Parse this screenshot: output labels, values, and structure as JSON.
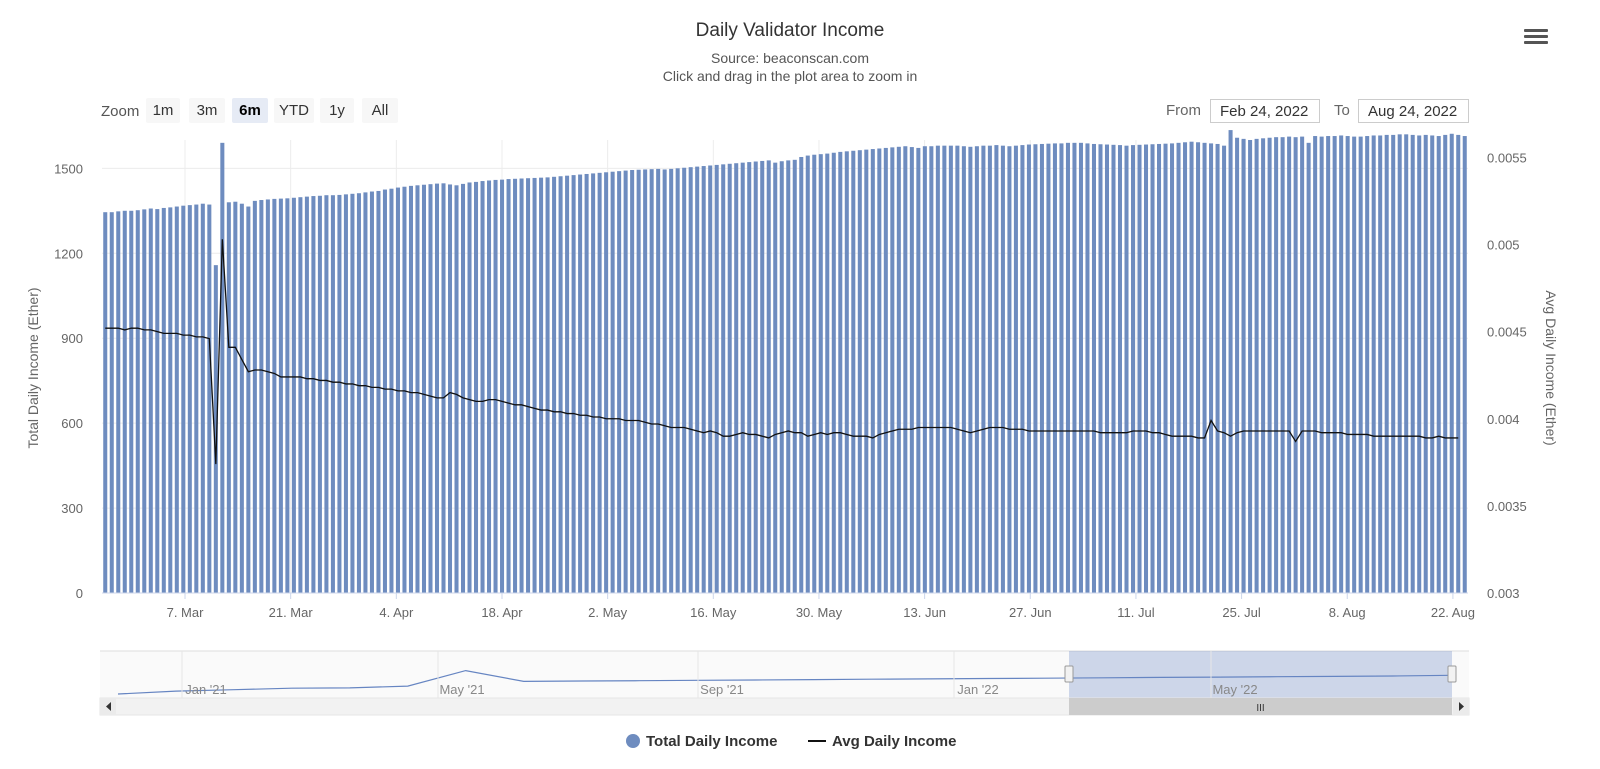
{
  "chart_data": {
    "type": "bar",
    "title": "Daily Validator Income",
    "subtitle": "Source: beaconscan.com",
    "subtitle2": "Click and drag in the plot area to zoom in",
    "ylabel_left": "Total Daily Income (Ether)",
    "ylabel_right": "Avg Daily Income (Ether)",
    "ylim_left": [
      0,
      1600
    ],
    "ylim_right": [
      0.003,
      0.0056
    ],
    "yticks_left": [
      "0",
      "300",
      "600",
      "900",
      "1200",
      "1500"
    ],
    "yticks_right": [
      "0.003",
      "0.0035",
      "0.004",
      "0.0045",
      "0.005",
      "0.0055"
    ],
    "xticks": [
      "7. Mar",
      "21. Mar",
      "4. Apr",
      "18. Apr",
      "2. May",
      "16. May",
      "30. May",
      "13. Jun",
      "27. Jun",
      "11. Jul",
      "25. Jul",
      "8. Aug",
      "22. Aug"
    ],
    "x_start": "2022-02-24",
    "x_end": "2022-08-24",
    "series": [
      {
        "name": "Total Daily Income",
        "kind": "column",
        "color": "#6e8cbf",
        "values": [
          1345,
          1345,
          1348,
          1350,
          1350,
          1352,
          1355,
          1358,
          1356,
          1360,
          1362,
          1365,
          1368,
          1370,
          1372,
          1375,
          1372,
          1158,
          1590,
          1380,
          1382,
          1375,
          1365,
          1385,
          1388,
          1390,
          1392,
          1393,
          1394,
          1396,
          1398,
          1400,
          1402,
          1403,
          1405,
          1405,
          1406,
          1408,
          1410,
          1412,
          1415,
          1418,
          1420,
          1425,
          1428,
          1432,
          1435,
          1438,
          1440,
          1442,
          1444,
          1446,
          1447,
          1443,
          1440,
          1445,
          1450,
          1452,
          1455,
          1457,
          1459,
          1460,
          1462,
          1463,
          1464,
          1465,
          1466,
          1467,
          1468,
          1470,
          1472,
          1474,
          1476,
          1478,
          1480,
          1482,
          1484,
          1486,
          1488,
          1490,
          1492,
          1494,
          1495,
          1496,
          1497,
          1498,
          1496,
          1498,
          1500,
          1502,
          1504,
          1506,
          1508,
          1510,
          1512,
          1514,
          1516,
          1518,
          1520,
          1522,
          1524,
          1526,
          1528,
          1520,
          1525,
          1528,
          1530,
          1540,
          1545,
          1548,
          1550,
          1552,
          1555,
          1558,
          1560,
          1562,
          1564,
          1566,
          1568,
          1570,
          1572,
          1574,
          1576,
          1578,
          1575,
          1572,
          1578,
          1578,
          1580,
          1580,
          1580,
          1580,
          1578,
          1576,
          1578,
          1580,
          1580,
          1582,
          1580,
          1578,
          1580,
          1582,
          1584,
          1585,
          1586,
          1587,
          1588,
          1588,
          1590,
          1590,
          1590,
          1588,
          1586,
          1585,
          1584,
          1583,
          1582,
          1580,
          1582,
          1583,
          1584,
          1585,
          1586,
          1587,
          1588,
          1590,
          1592,
          1594,
          1592,
          1590,
          1588,
          1586,
          1580,
          1635,
          1608,
          1604,
          1600,
          1604,
          1606,
          1608,
          1610,
          1610,
          1612,
          1610,
          1612,
          1590,
          1614,
          1612,
          1614,
          1614,
          1616,
          1614,
          1612,
          1612,
          1614,
          1616,
          1616,
          1618,
          1618,
          1620,
          1620,
          1618,
          1616,
          1618,
          1616,
          1614,
          1618,
          1622,
          1618,
          1614
        ]
      },
      {
        "name": "Avg Daily Income",
        "kind": "line",
        "color": "#111111",
        "values": [
          0.00452,
          0.00452,
          0.00452,
          0.00451,
          0.00452,
          0.00452,
          0.00451,
          0.00451,
          0.0045,
          0.00449,
          0.00449,
          0.00449,
          0.00448,
          0.00448,
          0.00447,
          0.00447,
          0.00446,
          0.00374,
          0.00503,
          0.00441,
          0.00441,
          0.00434,
          0.00427,
          0.00428,
          0.00428,
          0.00427,
          0.00426,
          0.00424,
          0.00424,
          0.00424,
          0.00424,
          0.00423,
          0.00423,
          0.00422,
          0.00422,
          0.00421,
          0.00421,
          0.0042,
          0.0042,
          0.00419,
          0.00419,
          0.00418,
          0.00418,
          0.00417,
          0.00417,
          0.00416,
          0.00416,
          0.00415,
          0.00415,
          0.00414,
          0.00413,
          0.00412,
          0.00412,
          0.00415,
          0.00414,
          0.00412,
          0.00411,
          0.0041,
          0.0041,
          0.00411,
          0.00411,
          0.0041,
          0.00409,
          0.00408,
          0.00408,
          0.00407,
          0.00406,
          0.00405,
          0.00405,
          0.00404,
          0.00404,
          0.00403,
          0.00403,
          0.00402,
          0.00402,
          0.00401,
          0.00401,
          0.004,
          0.004,
          0.004,
          0.00399,
          0.00399,
          0.00399,
          0.00398,
          0.00397,
          0.00397,
          0.00396,
          0.00395,
          0.00395,
          0.00395,
          0.00394,
          0.00393,
          0.00392,
          0.00393,
          0.00392,
          0.0039,
          0.0039,
          0.00391,
          0.00392,
          0.00391,
          0.00391,
          0.0039,
          0.00389,
          0.00391,
          0.00392,
          0.00393,
          0.00392,
          0.00392,
          0.0039,
          0.00391,
          0.00392,
          0.00391,
          0.00392,
          0.00392,
          0.00391,
          0.0039,
          0.0039,
          0.0039,
          0.00389,
          0.00391,
          0.00392,
          0.00393,
          0.00394,
          0.00394,
          0.00394,
          0.00395,
          0.00395,
          0.00395,
          0.00395,
          0.00395,
          0.00395,
          0.00394,
          0.00393,
          0.00392,
          0.00393,
          0.00394,
          0.00395,
          0.00395,
          0.00395,
          0.00394,
          0.00394,
          0.00394,
          0.00393,
          0.00393,
          0.00393,
          0.00393,
          0.00393,
          0.00393,
          0.00393,
          0.00393,
          0.00393,
          0.00393,
          0.00393,
          0.00392,
          0.00392,
          0.00392,
          0.00392,
          0.00392,
          0.00393,
          0.00393,
          0.00393,
          0.00392,
          0.00392,
          0.00391,
          0.0039,
          0.0039,
          0.0039,
          0.0039,
          0.00389,
          0.00389,
          0.00399,
          0.00393,
          0.00392,
          0.0039,
          0.00392,
          0.00393,
          0.00393,
          0.00393,
          0.00393,
          0.00393,
          0.00393,
          0.00393,
          0.00393,
          0.00387,
          0.00393,
          0.00393,
          0.00393,
          0.00392,
          0.00392,
          0.00392,
          0.00392,
          0.00391,
          0.00391,
          0.00391,
          0.00391,
          0.0039,
          0.0039,
          0.0039,
          0.0039,
          0.0039,
          0.0039,
          0.0039,
          0.0039,
          0.00389,
          0.00389,
          0.0039,
          0.00389,
          0.00389,
          0.00389
        ]
      }
    ],
    "navigator": {
      "labels": [
        "Jan '21",
        "May '21",
        "Sep '21",
        "Jan '22",
        "May '22"
      ],
      "series": [
        0.0003,
        0.08,
        0.12,
        0.16,
        0.17,
        0.22,
        0.65,
        0.35,
        0.36,
        0.37,
        0.38,
        0.39,
        0.4,
        0.41,
        0.42,
        0.43,
        0.44,
        0.45,
        0.46,
        0.47,
        0.48,
        0.49,
        0.5,
        0.52
      ]
    },
    "grid": true,
    "legend_position": "bottom-center"
  },
  "toolbar": {
    "zoom_label": "Zoom",
    "zoom_buttons": [
      "1m",
      "3m",
      "6m",
      "YTD",
      "1y",
      "All"
    ],
    "active_zoom": "6m",
    "from_label": "From",
    "from_value": "Feb 24, 2022",
    "to_label": "To",
    "to_value": "Aug 24, 2022"
  },
  "legend": {
    "items": [
      "Total Daily Income",
      "Avg Daily Income"
    ]
  },
  "scrollbar": {
    "thumb_glyph": "III"
  }
}
